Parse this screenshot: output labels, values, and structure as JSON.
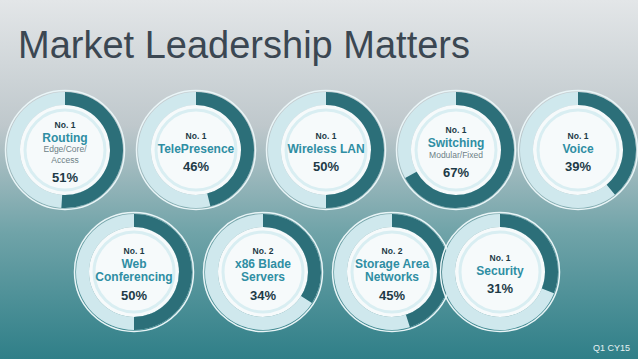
{
  "title": "Market Leadership Matters",
  "annotations": [
    "Q1 CY15"
  ],
  "chart_data": [
    {
      "type": "donut",
      "annotations": [
        "No. 1"
      ],
      "title": "Routing",
      "subtitle": "Edge/Core/\nAccess",
      "values": [
        51
      ],
      "value_labels": [
        "51%"
      ],
      "data_labels": true,
      "ylim": [
        0,
        100
      ],
      "color": "#2c6f79"
    },
    {
      "type": "donut",
      "annotations": [
        "No. 1"
      ],
      "title": "TelePresence",
      "values": [
        46
      ],
      "value_labels": [
        "46%"
      ],
      "data_labels": true,
      "ylim": [
        0,
        100
      ],
      "color": "#2c6f79"
    },
    {
      "type": "donut",
      "annotations": [
        "No. 1"
      ],
      "title": "Wireless LAN",
      "values": [
        50
      ],
      "value_labels": [
        "50%"
      ],
      "data_labels": true,
      "ylim": [
        0,
        100
      ],
      "color": "#2c6f79"
    },
    {
      "type": "donut",
      "annotations": [
        "No. 1"
      ],
      "title": "Switching",
      "subtitle": "Modular/Fixed",
      "values": [
        67
      ],
      "value_labels": [
        "67%"
      ],
      "data_labels": true,
      "ylim": [
        0,
        100
      ],
      "color": "#2c6f79"
    },
    {
      "type": "donut",
      "annotations": [
        "No. 1"
      ],
      "title": "Voice",
      "values": [
        39
      ],
      "value_labels": [
        "39%"
      ],
      "data_labels": true,
      "ylim": [
        0,
        100
      ],
      "color": "#2c6f79"
    },
    {
      "type": "donut",
      "annotations": [
        "No. 1"
      ],
      "title": "Web\nConferencing",
      "values": [
        50
      ],
      "value_labels": [
        "50%"
      ],
      "data_labels": true,
      "ylim": [
        0,
        100
      ],
      "color": "#2c6f79"
    },
    {
      "type": "donut",
      "annotations": [
        "No. 2"
      ],
      "title": "x86 Blade\nServers",
      "values": [
        34
      ],
      "value_labels": [
        "34%"
      ],
      "data_labels": true,
      "ylim": [
        0,
        100
      ],
      "color": "#2c6f79"
    },
    {
      "type": "donut",
      "annotations": [
        "No. 2"
      ],
      "title": "Storage Area\nNetworks",
      "values": [
        45
      ],
      "value_labels": [
        "45%"
      ],
      "data_labels": true,
      "ylim": [
        0,
        100
      ],
      "color": "#2c6f79"
    },
    {
      "type": "donut",
      "annotations": [
        "No. 1"
      ],
      "title": "Security",
      "values": [
        31
      ],
      "value_labels": [
        "31%"
      ],
      "data_labels": true,
      "ylim": [
        0,
        100
      ],
      "color": "#2c6f79"
    }
  ]
}
